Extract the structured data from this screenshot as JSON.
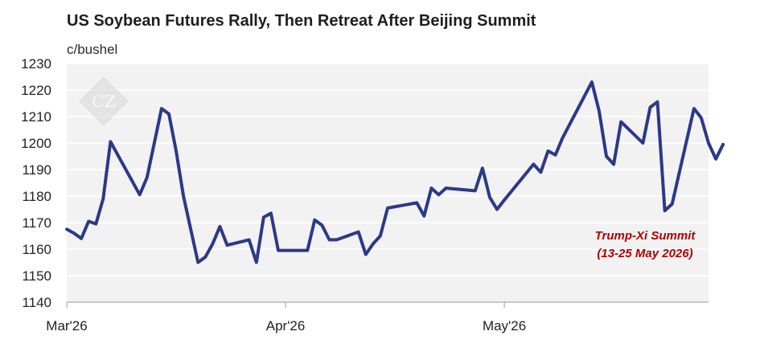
{
  "chart_data": {
    "type": "line",
    "title": "US Soybean Futures Rally, Then Retreat After Beijing Summit",
    "unit_label": "c/bushel",
    "ylim": [
      1140,
      1230
    ],
    "yticks": [
      1140,
      1150,
      1160,
      1170,
      1180,
      1190,
      1200,
      1210,
      1220,
      1230
    ],
    "xlim": [
      "2026-03-02",
      "2026-05-29"
    ],
    "xticks": [
      {
        "date": "2026-03-02",
        "label": "Mar'26"
      },
      {
        "date": "2026-04-01",
        "label": "Apr'26"
      },
      {
        "date": "2026-05-01",
        "label": "May'26"
      }
    ],
    "grid": true,
    "color": "#2b3a87",
    "series": [
      {
        "points": [
          [
            "2026-03-02",
            1167.5
          ],
          [
            "2026-03-03",
            1166
          ],
          [
            "2026-03-04",
            1164
          ],
          [
            "2026-03-05",
            1170.5
          ],
          [
            "2026-03-06",
            1169.5
          ],
          [
            "2026-03-07",
            1179
          ],
          [
            "2026-03-08",
            1200.5
          ],
          [
            "2026-03-12",
            1180.5
          ],
          [
            "2026-03-13",
            1187
          ],
          [
            "2026-03-15",
            1213
          ],
          [
            "2026-03-16",
            1211
          ],
          [
            "2026-03-17",
            1197
          ],
          [
            "2026-03-18",
            1180
          ],
          [
            "2026-03-20",
            1155
          ],
          [
            "2026-03-21",
            1157
          ],
          [
            "2026-03-22",
            1162
          ],
          [
            "2026-03-23",
            1168.5
          ],
          [
            "2026-03-24",
            1161.5
          ],
          [
            "2026-03-27",
            1163.5
          ],
          [
            "2026-03-28",
            1155
          ],
          [
            "2026-03-29",
            1172
          ],
          [
            "2026-03-30",
            1173.5
          ],
          [
            "2026-03-31",
            1159.5
          ],
          [
            "2026-04-04",
            1159.5
          ],
          [
            "2026-04-05",
            1171
          ],
          [
            "2026-04-06",
            1169
          ],
          [
            "2026-04-07",
            1163.5
          ],
          [
            "2026-04-08",
            1163.5
          ],
          [
            "2026-04-11",
            1166.5
          ],
          [
            "2026-04-12",
            1158
          ],
          [
            "2026-04-13",
            1162
          ],
          [
            "2026-04-14",
            1165
          ],
          [
            "2026-04-15",
            1175.5
          ],
          [
            "2026-04-19",
            1177.5
          ],
          [
            "2026-04-20",
            1172.5
          ],
          [
            "2026-04-21",
            1183
          ],
          [
            "2026-04-22",
            1180.5
          ],
          [
            "2026-04-23",
            1183
          ],
          [
            "2026-04-27",
            1182
          ],
          [
            "2026-04-28",
            1190.5
          ],
          [
            "2026-04-29",
            1179.5
          ],
          [
            "2026-04-30",
            1175
          ],
          [
            "2026-05-01",
            1178.5
          ],
          [
            "2026-05-05",
            1192
          ],
          [
            "2026-05-06",
            1189
          ],
          [
            "2026-05-07",
            1197
          ],
          [
            "2026-05-08",
            1195.5
          ],
          [
            "2026-05-09",
            1202
          ],
          [
            "2026-05-13",
            1223
          ],
          [
            "2026-05-14",
            1212
          ],
          [
            "2026-05-15",
            1195
          ],
          [
            "2026-05-16",
            1192
          ],
          [
            "2026-05-17",
            1208
          ],
          [
            "2026-05-20",
            1200
          ],
          [
            "2026-05-21",
            1213.5
          ],
          [
            "2026-05-22",
            1215.5
          ],
          [
            "2026-05-23",
            1174.5
          ],
          [
            "2026-05-24",
            1177
          ],
          [
            "2026-05-27",
            1213
          ],
          [
            "2026-05-28",
            1209.5
          ],
          [
            "2026-05-29",
            1200
          ],
          [
            "2026-05-30",
            1194
          ],
          [
            "2026-05-31",
            1199.5
          ]
        ]
      }
    ],
    "annotations": [
      {
        "lines": [
          "Trump-Xi Summit",
          "(13-25 May 2026)"
        ],
        "color": "#b00000"
      }
    ],
    "watermark": "CZ"
  }
}
